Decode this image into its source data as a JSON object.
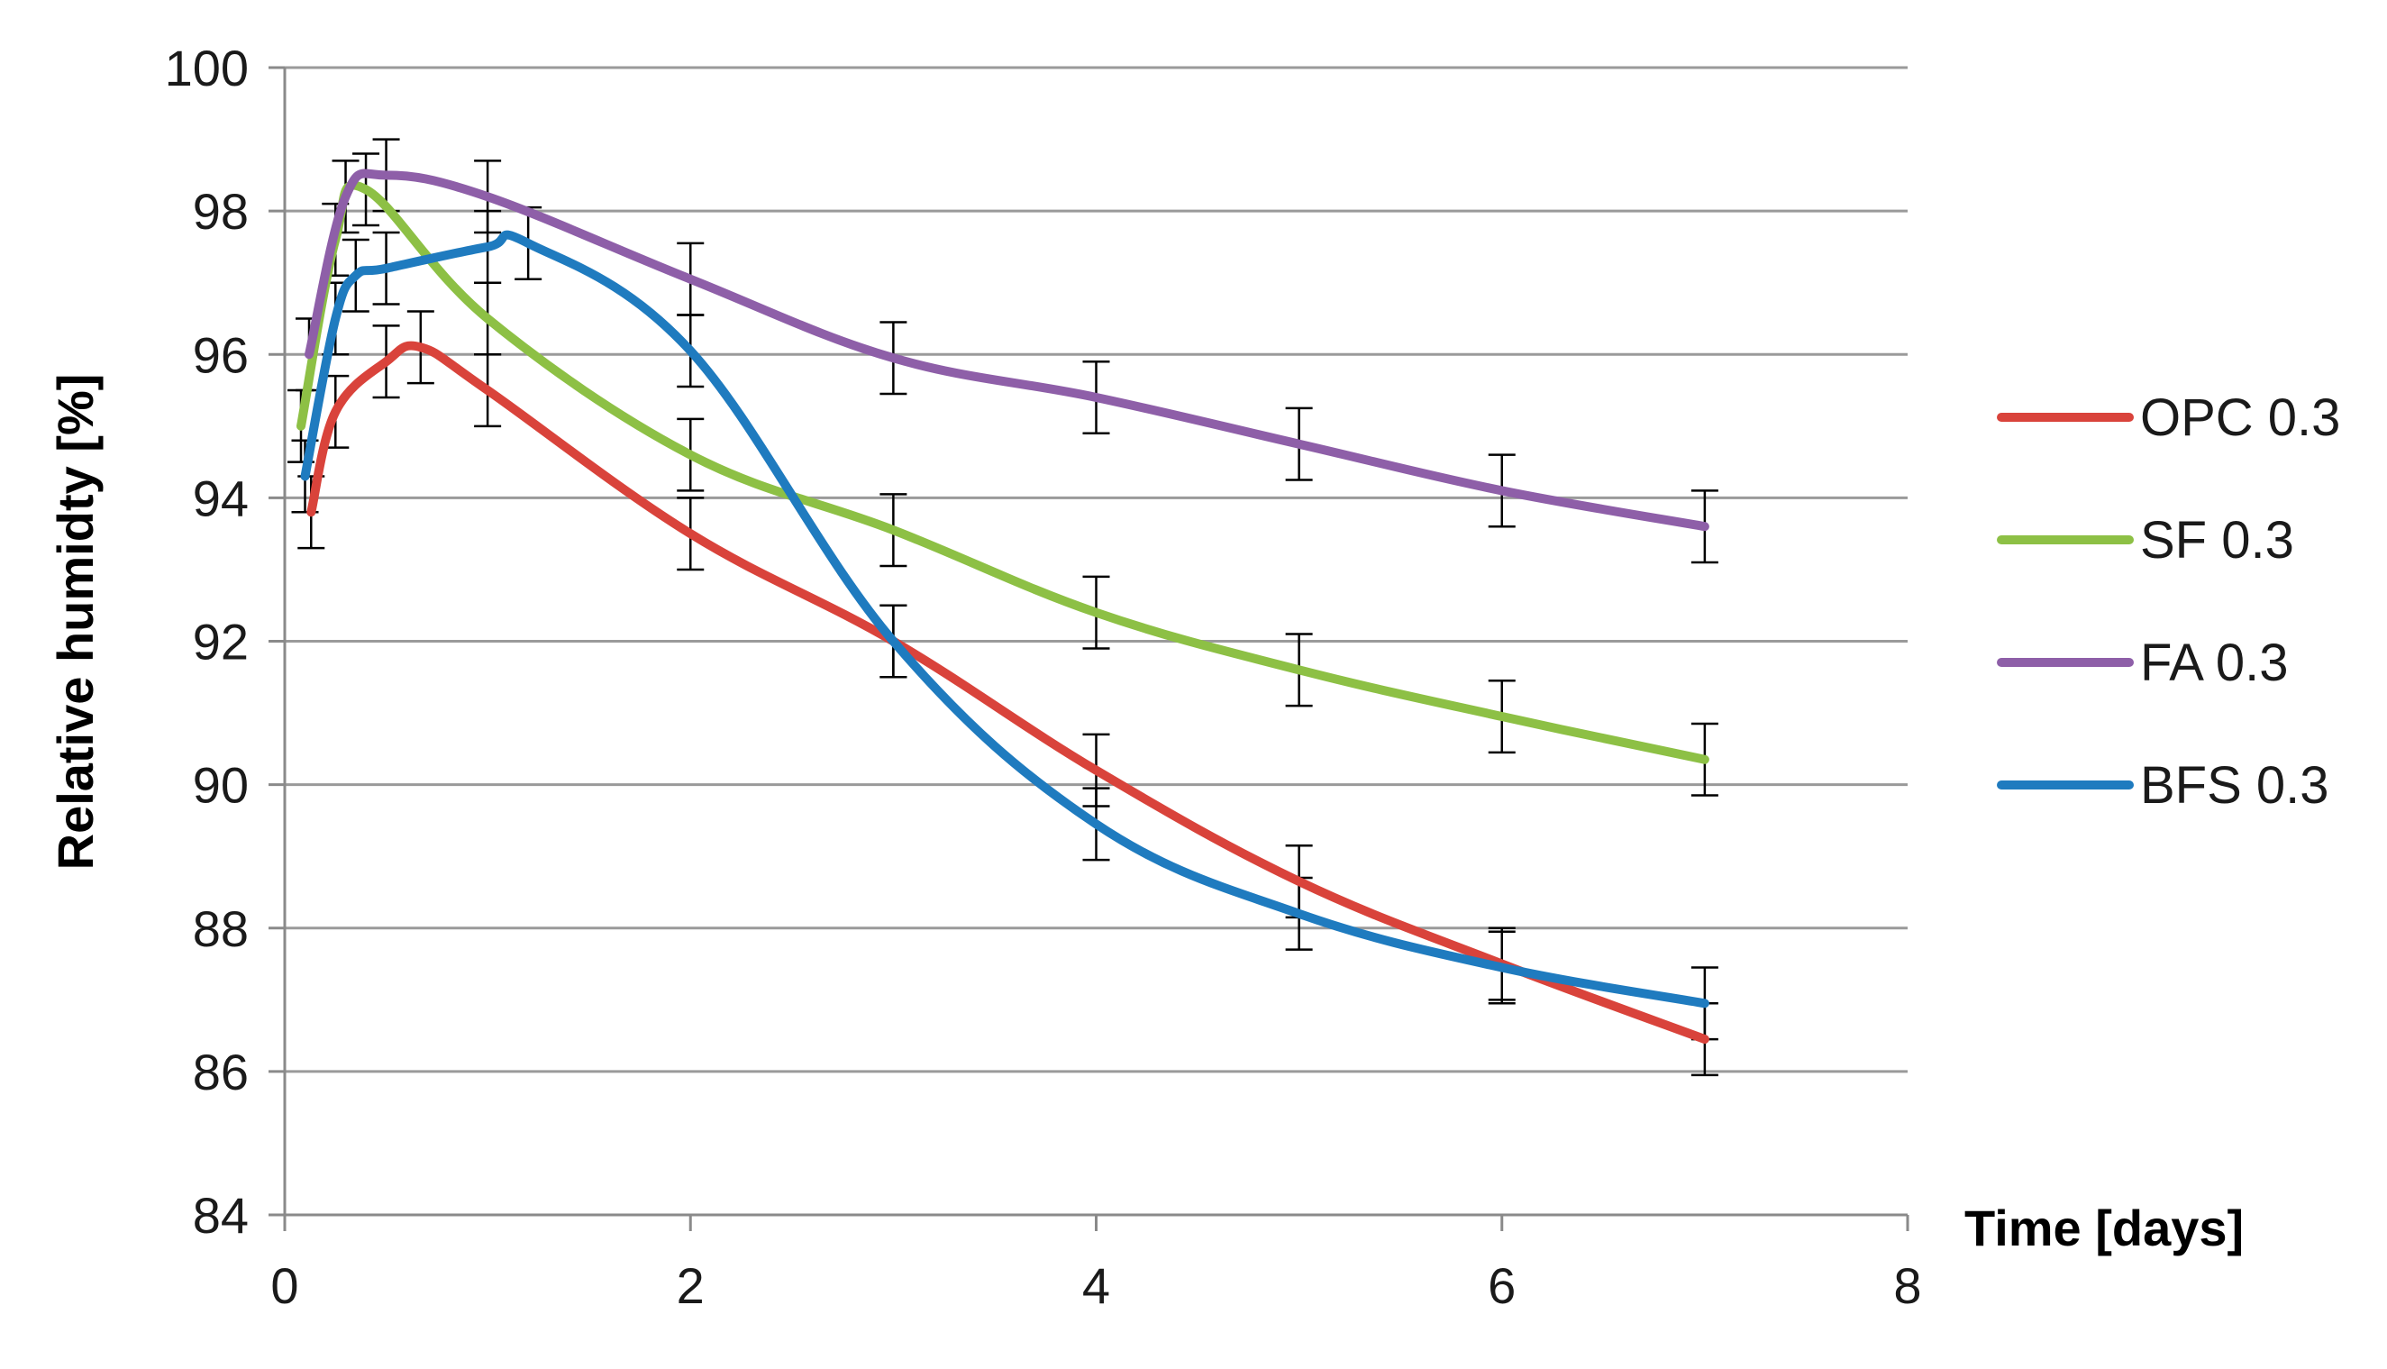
{
  "chart_data": {
    "type": "line",
    "title": "",
    "xlabel": "Time [days]",
    "ylabel": "Relative humidty [%]",
    "xlim": [
      0,
      8
    ],
    "ylim": [
      84,
      100
    ],
    "xticks": [
      0,
      2,
      4,
      6,
      8
    ],
    "yticks": [
      84,
      86,
      88,
      90,
      92,
      94,
      96,
      98,
      100
    ],
    "grid": "horizontal",
    "legend_position": "right",
    "error_bar_halfwidth": 0.5,
    "series": [
      {
        "name": "OPC 0.3",
        "color": "#d9433b",
        "x": [
          0.13,
          0.25,
          0.5,
          0.67,
          1,
          2,
          3,
          4,
          5,
          6,
          7
        ],
        "y": [
          93.8,
          95.2,
          95.9,
          96.1,
          95.5,
          93.5,
          92.0,
          90.2,
          88.65,
          87.5,
          86.45
        ]
      },
      {
        "name": "SF 0.3",
        "color": "#8dc045",
        "x": [
          0.08,
          0.25,
          0.4,
          1,
          2,
          3,
          4,
          5,
          6,
          7
        ],
        "y": [
          95.0,
          97.6,
          98.3,
          96.5,
          94.6,
          93.55,
          92.4,
          91.6,
          90.95,
          90.35
        ]
      },
      {
        "name": "FA 0.3",
        "color": "#8e5fa8",
        "x": [
          0.12,
          0.3,
          0.5,
          1,
          2,
          3,
          4,
          5,
          6,
          7
        ],
        "y": [
          96.0,
          98.2,
          98.5,
          98.2,
          97.05,
          95.95,
          95.4,
          94.75,
          94.1,
          93.6
        ]
      },
      {
        "name": "BFS 0.3",
        "color": "#1f7bbf",
        "x": [
          0.1,
          0.25,
          0.35,
          0.5,
          1,
          1.2,
          2,
          3,
          4,
          5,
          6,
          7
        ],
        "y": [
          94.3,
          96.5,
          97.1,
          97.2,
          97.5,
          97.55,
          96.05,
          92.0,
          89.45,
          88.2,
          87.45,
          86.95
        ]
      }
    ]
  }
}
